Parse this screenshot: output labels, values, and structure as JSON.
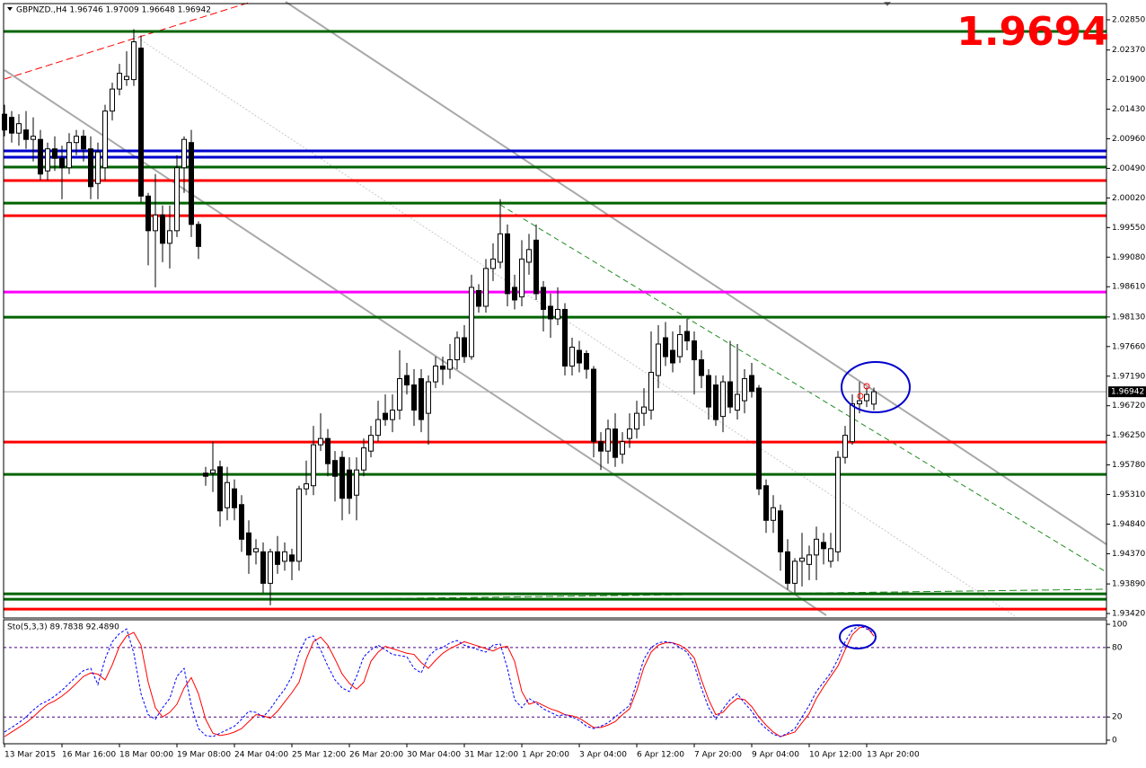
{
  "chart_data": [
    {
      "type": "candlestick",
      "title": "GBPNZD.,H4  1.96746 1.97009 1.96648 1.96942",
      "price_display": "1.9694",
      "current_price": 1.96942,
      "categories": [
        "13 Mar 2015",
        null,
        null,
        null,
        null,
        null,
        null,
        null,
        "16 Mar 16:00",
        null,
        null,
        null,
        null,
        null,
        null,
        null,
        "18 Mar 00:00",
        null,
        null,
        null,
        null,
        null,
        null,
        null,
        "19 Mar 08:00",
        null,
        null,
        null,
        null,
        null,
        null,
        null,
        "24 Mar 04:00",
        null,
        null,
        null,
        null,
        null,
        null,
        null,
        "25 Mar 12:00",
        null,
        null,
        null,
        null,
        null,
        null,
        null,
        "26 Mar 20:00",
        null,
        null,
        null,
        null,
        null,
        null,
        null,
        "30 Mar 04:00",
        null,
        null,
        null,
        null,
        null,
        null,
        null,
        "31 Mar 12:00",
        null,
        null,
        null,
        null,
        null,
        null,
        null,
        "1 Apr 20:00",
        null,
        null,
        null,
        null,
        null,
        null,
        null,
        "3 Apr 04:00",
        null,
        null,
        null,
        null,
        null,
        null,
        null,
        "6 Apr 12:00",
        null,
        null,
        null,
        null,
        null,
        null,
        null,
        "7 Apr 20:00",
        null,
        null,
        null,
        null,
        null,
        null,
        null,
        "9 Apr 04:00",
        null,
        null,
        null,
        null,
        null,
        null,
        null,
        "10 Apr 12:00",
        null,
        null,
        null,
        null,
        null,
        null,
        null,
        "13 Apr 20:00",
        null
      ],
      "open": [
        2.0135,
        2.013,
        2.0105,
        2.011,
        2.0095,
        2.0095,
        2.0045,
        2.008,
        2.0065,
        2.005,
        2.009,
        2.01,
        2.008,
        2.0025,
        2.005,
        2.014,
        2.0175,
        2.019,
        2.019,
        2.024,
        2.0005,
        1.995,
        1.9975,
        1.993,
        1.995,
        2.005,
        2.009,
        1.996,
        1.9565,
        1.9565,
        1.9575,
        1.951,
        1.954,
        1.9515,
        1.947,
        1.944,
        1.944,
        1.939,
        1.944,
        1.9425,
        1.9435,
        1.9425,
        1.954,
        1.9545,
        1.961,
        1.962,
        1.9585,
        1.959,
        1.957,
        1.953,
        1.957,
        1.96,
        1.9625,
        1.966,
        1.965,
        1.9665,
        1.972,
        1.9705,
        1.9715,
        1.966,
        1.971,
        1.9735,
        1.973,
        1.9745,
        1.978,
        1.975,
        1.9855,
        1.983,
        1.989,
        1.99,
        1.9945,
        1.986,
        1.9845,
        1.99,
        1.9935,
        1.986,
        1.983,
        1.981,
        1.9825,
        1.9735,
        1.976,
        1.9755,
        1.973,
        1.9615,
        1.96,
        1.9635,
        1.9595,
        1.962,
        1.9635,
        1.966,
        1.9665,
        1.972,
        1.978,
        1.976,
        1.975,
        1.979,
        1.9775,
        1.9745,
        1.972,
        1.9705,
        1.9655,
        1.971,
        1.9665,
        1.968,
        1.972,
        1.97,
        1.9545,
        1.949,
        1.9505,
        1.944,
        1.939,
        1.9425,
        1.942,
        1.9435,
        1.9455,
        1.9425,
        1.944,
        1.959,
        1.9615,
        1.9675,
        1.968,
        1.96746
      ],
      "high": [
        2.015,
        2.014,
        2.0135,
        2.014,
        2.013,
        2.011,
        2.009,
        2.01,
        2.0085,
        2.0105,
        2.011,
        2.011,
        2.01,
        2.009,
        2.015,
        2.0185,
        2.0215,
        2.0235,
        2.027,
        2.026,
        2.001,
        2.004,
        1.999,
        1.999,
        2.007,
        2.01,
        2.011,
        1.9965,
        1.9575,
        1.9615,
        1.9585,
        1.9575,
        1.9555,
        1.953,
        1.949,
        1.946,
        1.9455,
        1.9445,
        1.9465,
        1.9455,
        1.9445,
        1.9545,
        1.9585,
        1.964,
        1.966,
        1.9635,
        1.96,
        1.96,
        1.959,
        1.959,
        1.962,
        1.964,
        1.968,
        1.969,
        1.969,
        1.976,
        1.974,
        1.973,
        1.973,
        1.972,
        1.975,
        1.975,
        1.977,
        1.979,
        1.98,
        1.988,
        1.9865,
        1.9905,
        1.993,
        2.0,
        1.996,
        1.988,
        1.9935,
        1.9945,
        1.996,
        1.987,
        1.985,
        1.986,
        1.9835,
        1.978,
        1.9775,
        1.976,
        1.9735,
        1.963,
        1.965,
        1.966,
        1.963,
        1.966,
        1.968,
        1.97,
        1.979,
        1.98,
        1.9805,
        1.979,
        1.98,
        1.981,
        1.979,
        1.976,
        1.973,
        1.972,
        1.972,
        1.9775,
        1.977,
        1.973,
        1.974,
        1.9705,
        1.9555,
        1.953,
        1.9515,
        1.946,
        1.943,
        1.947,
        1.945,
        1.948,
        1.947,
        1.947,
        1.96,
        1.964,
        1.969,
        1.971,
        1.9701,
        1.97009
      ],
      "low": [
        2.01,
        2.009,
        2.0085,
        2.008,
        2.006,
        2.003,
        2.003,
        2.0045,
        2.0,
        2.004,
        2.007,
        2.006,
        2.0,
        2.0,
        2.003,
        2.0125,
        2.0165,
        2.018,
        2.018,
        1.9995,
        1.9895,
        1.986,
        1.99,
        1.989,
        1.994,
        2.001,
        1.994,
        1.9905,
        1.9545,
        1.9535,
        1.948,
        1.949,
        1.949,
        1.944,
        1.9405,
        1.942,
        1.9375,
        1.9355,
        1.9405,
        1.941,
        1.9395,
        1.941,
        1.953,
        1.953,
        1.96,
        1.956,
        1.952,
        1.949,
        1.95,
        1.949,
        1.956,
        1.959,
        1.9615,
        1.964,
        1.963,
        1.965,
        1.969,
        1.964,
        1.963,
        1.961,
        1.97,
        1.9705,
        1.9715,
        1.973,
        1.974,
        1.9745,
        1.982,
        1.982,
        1.987,
        1.989,
        1.983,
        1.9825,
        1.983,
        1.988,
        1.984,
        1.979,
        1.978,
        1.98,
        1.972,
        1.972,
        1.9725,
        1.9715,
        1.959,
        1.957,
        1.958,
        1.9575,
        1.958,
        1.9605,
        1.962,
        1.964,
        1.965,
        1.97,
        1.9735,
        1.9725,
        1.974,
        1.976,
        1.969,
        1.97,
        1.965,
        1.964,
        1.963,
        1.966,
        1.965,
        1.966,
        1.9685,
        1.953,
        1.947,
        1.947,
        1.941,
        1.938,
        1.9375,
        1.9385,
        1.9395,
        1.9395,
        1.942,
        1.9415,
        1.9425,
        1.958,
        1.961,
        1.966,
        1.967,
        1.96648
      ],
      "close": [
        2.011,
        2.0105,
        2.012,
        2.0095,
        2.01,
        2.004,
        2.008,
        2.0065,
        2.005,
        2.009,
        2.01,
        2.008,
        2.002,
        2.0075,
        2.014,
        2.0175,
        2.02,
        2.0195,
        2.025,
        2.0005,
        1.995,
        1.9975,
        1.993,
        1.995,
        2.005,
        2.0095,
        1.996,
        1.9925,
        1.956,
        1.957,
        1.9505,
        1.955,
        1.951,
        1.946,
        1.9435,
        1.9445,
        1.939,
        1.944,
        1.942,
        1.944,
        1.9425,
        1.954,
        1.9548,
        1.961,
        1.962,
        1.958,
        1.956,
        1.9525,
        1.9525,
        1.957,
        1.9605,
        1.9625,
        1.965,
        1.965,
        1.9665,
        1.9715,
        1.9705,
        1.9665,
        1.965,
        1.971,
        1.9735,
        1.973,
        1.9745,
        1.978,
        1.975,
        1.986,
        1.983,
        1.989,
        1.9905,
        1.9945,
        1.985,
        1.984,
        1.9905,
        1.992,
        1.985,
        1.9825,
        1.981,
        1.9825,
        1.9735,
        1.9765,
        1.974,
        1.973,
        1.9615,
        1.96,
        1.9635,
        1.959,
        1.9615,
        1.9635,
        1.966,
        1.967,
        1.9725,
        1.977,
        1.975,
        1.974,
        1.9785,
        1.9775,
        1.9745,
        1.972,
        1.967,
        1.965,
        1.971,
        1.967,
        1.969,
        1.9715,
        1.9695,
        1.954,
        1.949,
        1.951,
        1.944,
        1.939,
        1.9425,
        1.943,
        1.9435,
        1.946,
        1.9445,
        1.9445,
        1.959,
        1.9625,
        1.9675,
        1.968,
        1.969,
        1.96942
      ],
      "levels": [
        {
          "value": 2.02665,
          "color": "#006400"
        },
        {
          "value": 2.00767,
          "color": "#0000cd"
        },
        {
          "value": 2.00667,
          "color": "#0000cd"
        },
        {
          "value": 2.0051,
          "color": "#006400"
        },
        {
          "value": 2.00296,
          "color": "#ff0000"
        },
        {
          "value": 1.99939,
          "color": "#006400"
        },
        {
          "value": 1.99739,
          "color": "#ff0000"
        },
        {
          "value": 1.98526,
          "color": "#ff00ff"
        },
        {
          "value": 1.98127,
          "color": "#006400"
        },
        {
          "value": 1.96143,
          "color": "#ff0000"
        },
        {
          "value": 1.95629,
          "color": "#006400"
        },
        {
          "value": 1.93732,
          "color": "#006400"
        },
        {
          "value": 1.93646,
          "color": "#006400"
        },
        {
          "value": 1.93489,
          "color": "#ff0000"
        }
      ],
      "ylim": [
        1.93349,
        2.03107
      ],
      "yticks": [
        {
          "value": 2.0285,
          "label": "2.02850"
        },
        {
          "value": 2.0237,
          "label": "2.02370"
        },
        {
          "value": 2.019,
          "label": "2.01900"
        },
        {
          "value": 2.0143,
          "label": "2.01430"
        },
        {
          "value": 2.0096,
          "label": "2.00960"
        },
        {
          "value": 2.0049,
          "label": "2.00490"
        },
        {
          "value": 2.0002,
          "label": "2.00020"
        },
        {
          "value": 1.9955,
          "label": "1.99550"
        },
        {
          "value": 1.9908,
          "label": "1.99080"
        },
        {
          "value": 1.9861,
          "label": "1.98610"
        },
        {
          "value": 1.9813,
          "label": "1.98130"
        },
        {
          "value": 1.9766,
          "label": "1.97660"
        },
        {
          "value": 1.9719,
          "label": "1.97190"
        },
        {
          "value": 1.9672,
          "label": "1.96720"
        },
        {
          "value": 1.9625,
          "label": "1.96250"
        },
        {
          "value": 1.9578,
          "label": "1.95780"
        },
        {
          "value": 1.9531,
          "label": "1.95310"
        },
        {
          "value": 1.9484,
          "label": "1.94840"
        },
        {
          "value": 1.9437,
          "label": "1.94370"
        },
        {
          "value": 1.9389,
          "label": "1.93890"
        },
        {
          "value": 1.9342,
          "label": "1.93420"
        }
      ]
    },
    {
      "type": "line",
      "title": "Sto(5,3,3) 89.7838 92.4890",
      "series": [
        {
          "color": "#ff0000",
          "style": "solid",
          "values": [
            3,
            7,
            11,
            15,
            20,
            26,
            31,
            34,
            38,
            43,
            49,
            55,
            58,
            57,
            52,
            65,
            81,
            90,
            93,
            82,
            50,
            28,
            20,
            24,
            31,
            45,
            54,
            40,
            18,
            6,
            4,
            5,
            7,
            10,
            16,
            22,
            21,
            19,
            25,
            33,
            41,
            50,
            70,
            85,
            89,
            82,
            70,
            57,
            49,
            44,
            50,
            68,
            76,
            81,
            79,
            77,
            75,
            74,
            67,
            62,
            69,
            75,
            79,
            82,
            85,
            83,
            81,
            79,
            77,
            80,
            81,
            68,
            42,
            31,
            33,
            30,
            27,
            25,
            22,
            21,
            19,
            15,
            11,
            11,
            13,
            16,
            22,
            27,
            43,
            63,
            76,
            82,
            84,
            84,
            82,
            78,
            71,
            52,
            35,
            22,
            24,
            31,
            36,
            35,
            29,
            20,
            13,
            7,
            3,
            5,
            7,
            15,
            23,
            36,
            46,
            55,
            64,
            78,
            91,
            97,
            98,
            89.7838
          ]
        },
        {
          "color": "#0000ff",
          "style": "dashed",
          "values": [
            7,
            11,
            15,
            20,
            26,
            31,
            34,
            38,
            43,
            49,
            55,
            60,
            62,
            48,
            70,
            85,
            92,
            96,
            75,
            40,
            22,
            18,
            28,
            36,
            55,
            62,
            30,
            10,
            4,
            3,
            6,
            9,
            12,
            18,
            25,
            24,
            20,
            27,
            36,
            44,
            55,
            75,
            88,
            90,
            78,
            64,
            52,
            45,
            42,
            55,
            72,
            78,
            82,
            78,
            74,
            73,
            72,
            62,
            58,
            72,
            78,
            80,
            84,
            86,
            82,
            80,
            78,
            76,
            82,
            83,
            62,
            35,
            28,
            36,
            32,
            27,
            24,
            21,
            22,
            20,
            17,
            12,
            10,
            12,
            15,
            20,
            25,
            30,
            50,
            70,
            80,
            84,
            85,
            84,
            80,
            76,
            65,
            45,
            28,
            18,
            27,
            35,
            40,
            32,
            25,
            16,
            10,
            5,
            3,
            6,
            10,
            20,
            30,
            42,
            50,
            58,
            70,
            85,
            95,
            99,
            96,
            92.489
          ]
        }
      ],
      "levels": [
        20,
        80
      ],
      "ylim": [
        -3.1,
        103.9
      ],
      "yticks": [
        100,
        80,
        20,
        0
      ]
    }
  ]
}
